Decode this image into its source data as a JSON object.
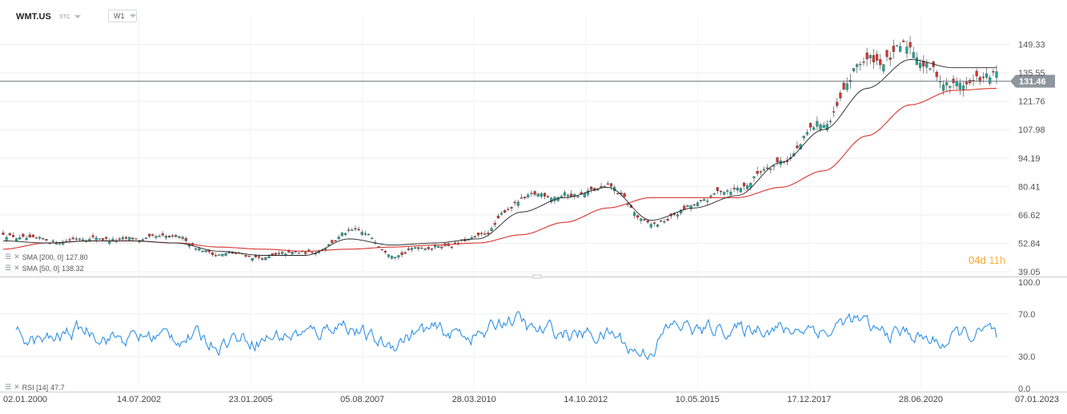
{
  "header": {
    "symbol": "WMT.US",
    "symbol_type": "STC",
    "timeframe": "W1"
  },
  "indicators": {
    "sma200": {
      "label": "SMA [200, 0]",
      "value": "127.80",
      "color": "#d8342c"
    },
    "sma50": {
      "label": "SMA [50, 0]",
      "value": "138.32",
      "color": "#222222"
    },
    "rsi": {
      "label": "RSI [14]",
      "value": "47.7",
      "color": "#1e88e5"
    }
  },
  "countdown": {
    "days": "04",
    "d": "d",
    "hours": "11",
    "h": "h"
  },
  "price_axis": [
    "149.33",
    "135.55",
    "121.76",
    "107.98",
    "94.19",
    "80.41",
    "66.62",
    "52.84",
    "39.05"
  ],
  "current_price": "131.46",
  "rsi_axis": [
    "100.0",
    "70.0",
    "30.0",
    "0.0"
  ],
  "date_axis": [
    "02.01.2000",
    "14.07.2002",
    "23.01.2005",
    "05.08.2007",
    "28.03.2010",
    "14.10.2012",
    "10.05.2015",
    "17.12.2017",
    "28.06.2020",
    "07.01.2023"
  ],
  "colors": {
    "up": "#26a69a",
    "down": "#d8342c",
    "rsi": "#1e88e5",
    "current_price_bg": "#8e969e",
    "grid": "#eeeeee"
  },
  "chart_data": [
    {
      "type": "candlestick",
      "title": "WMT.US",
      "interval": "W1",
      "ylim": [
        39.05,
        163.1
      ],
      "x": [
        "2000",
        "2001",
        "2002",
        "2003",
        "2004",
        "2005",
        "2006",
        "2007",
        "2008",
        "2009",
        "2010",
        "2011",
        "2012",
        "2013",
        "2014",
        "2015",
        "2016",
        "2017",
        "2018",
        "2019",
        "2020",
        "2021",
        "2022",
        "2023"
      ],
      "series": [
        {
          "name": "Price",
          "values": [
            58,
            52,
            57,
            54,
            53,
            48,
            46,
            47,
            58,
            50,
            53,
            55,
            73,
            77,
            78,
            60,
            70,
            80,
            95,
            110,
            140,
            145,
            130,
            132
          ]
        },
        {
          "name": "SMA [50, 0]",
          "values": [
            54,
            53,
            54,
            54,
            53,
            49,
            47,
            47,
            55,
            52,
            53,
            55,
            68,
            75,
            80,
            64,
            70,
            76,
            92,
            108,
            128,
            142,
            138,
            138
          ]
        },
        {
          "name": "SMA [200, 0]",
          "values": [
            50,
            53,
            54,
            54,
            53,
            51,
            50,
            49,
            50,
            51,
            52,
            53,
            57,
            63,
            70,
            75,
            75,
            75,
            80,
            88,
            105,
            120,
            127,
            128
          ]
        }
      ],
      "current_price": 131.46
    },
    {
      "type": "line",
      "title": "RSI [14]",
      "ylim": [
        0,
        100
      ],
      "levels": [
        30,
        70
      ],
      "last_value": 47.7
    }
  ]
}
